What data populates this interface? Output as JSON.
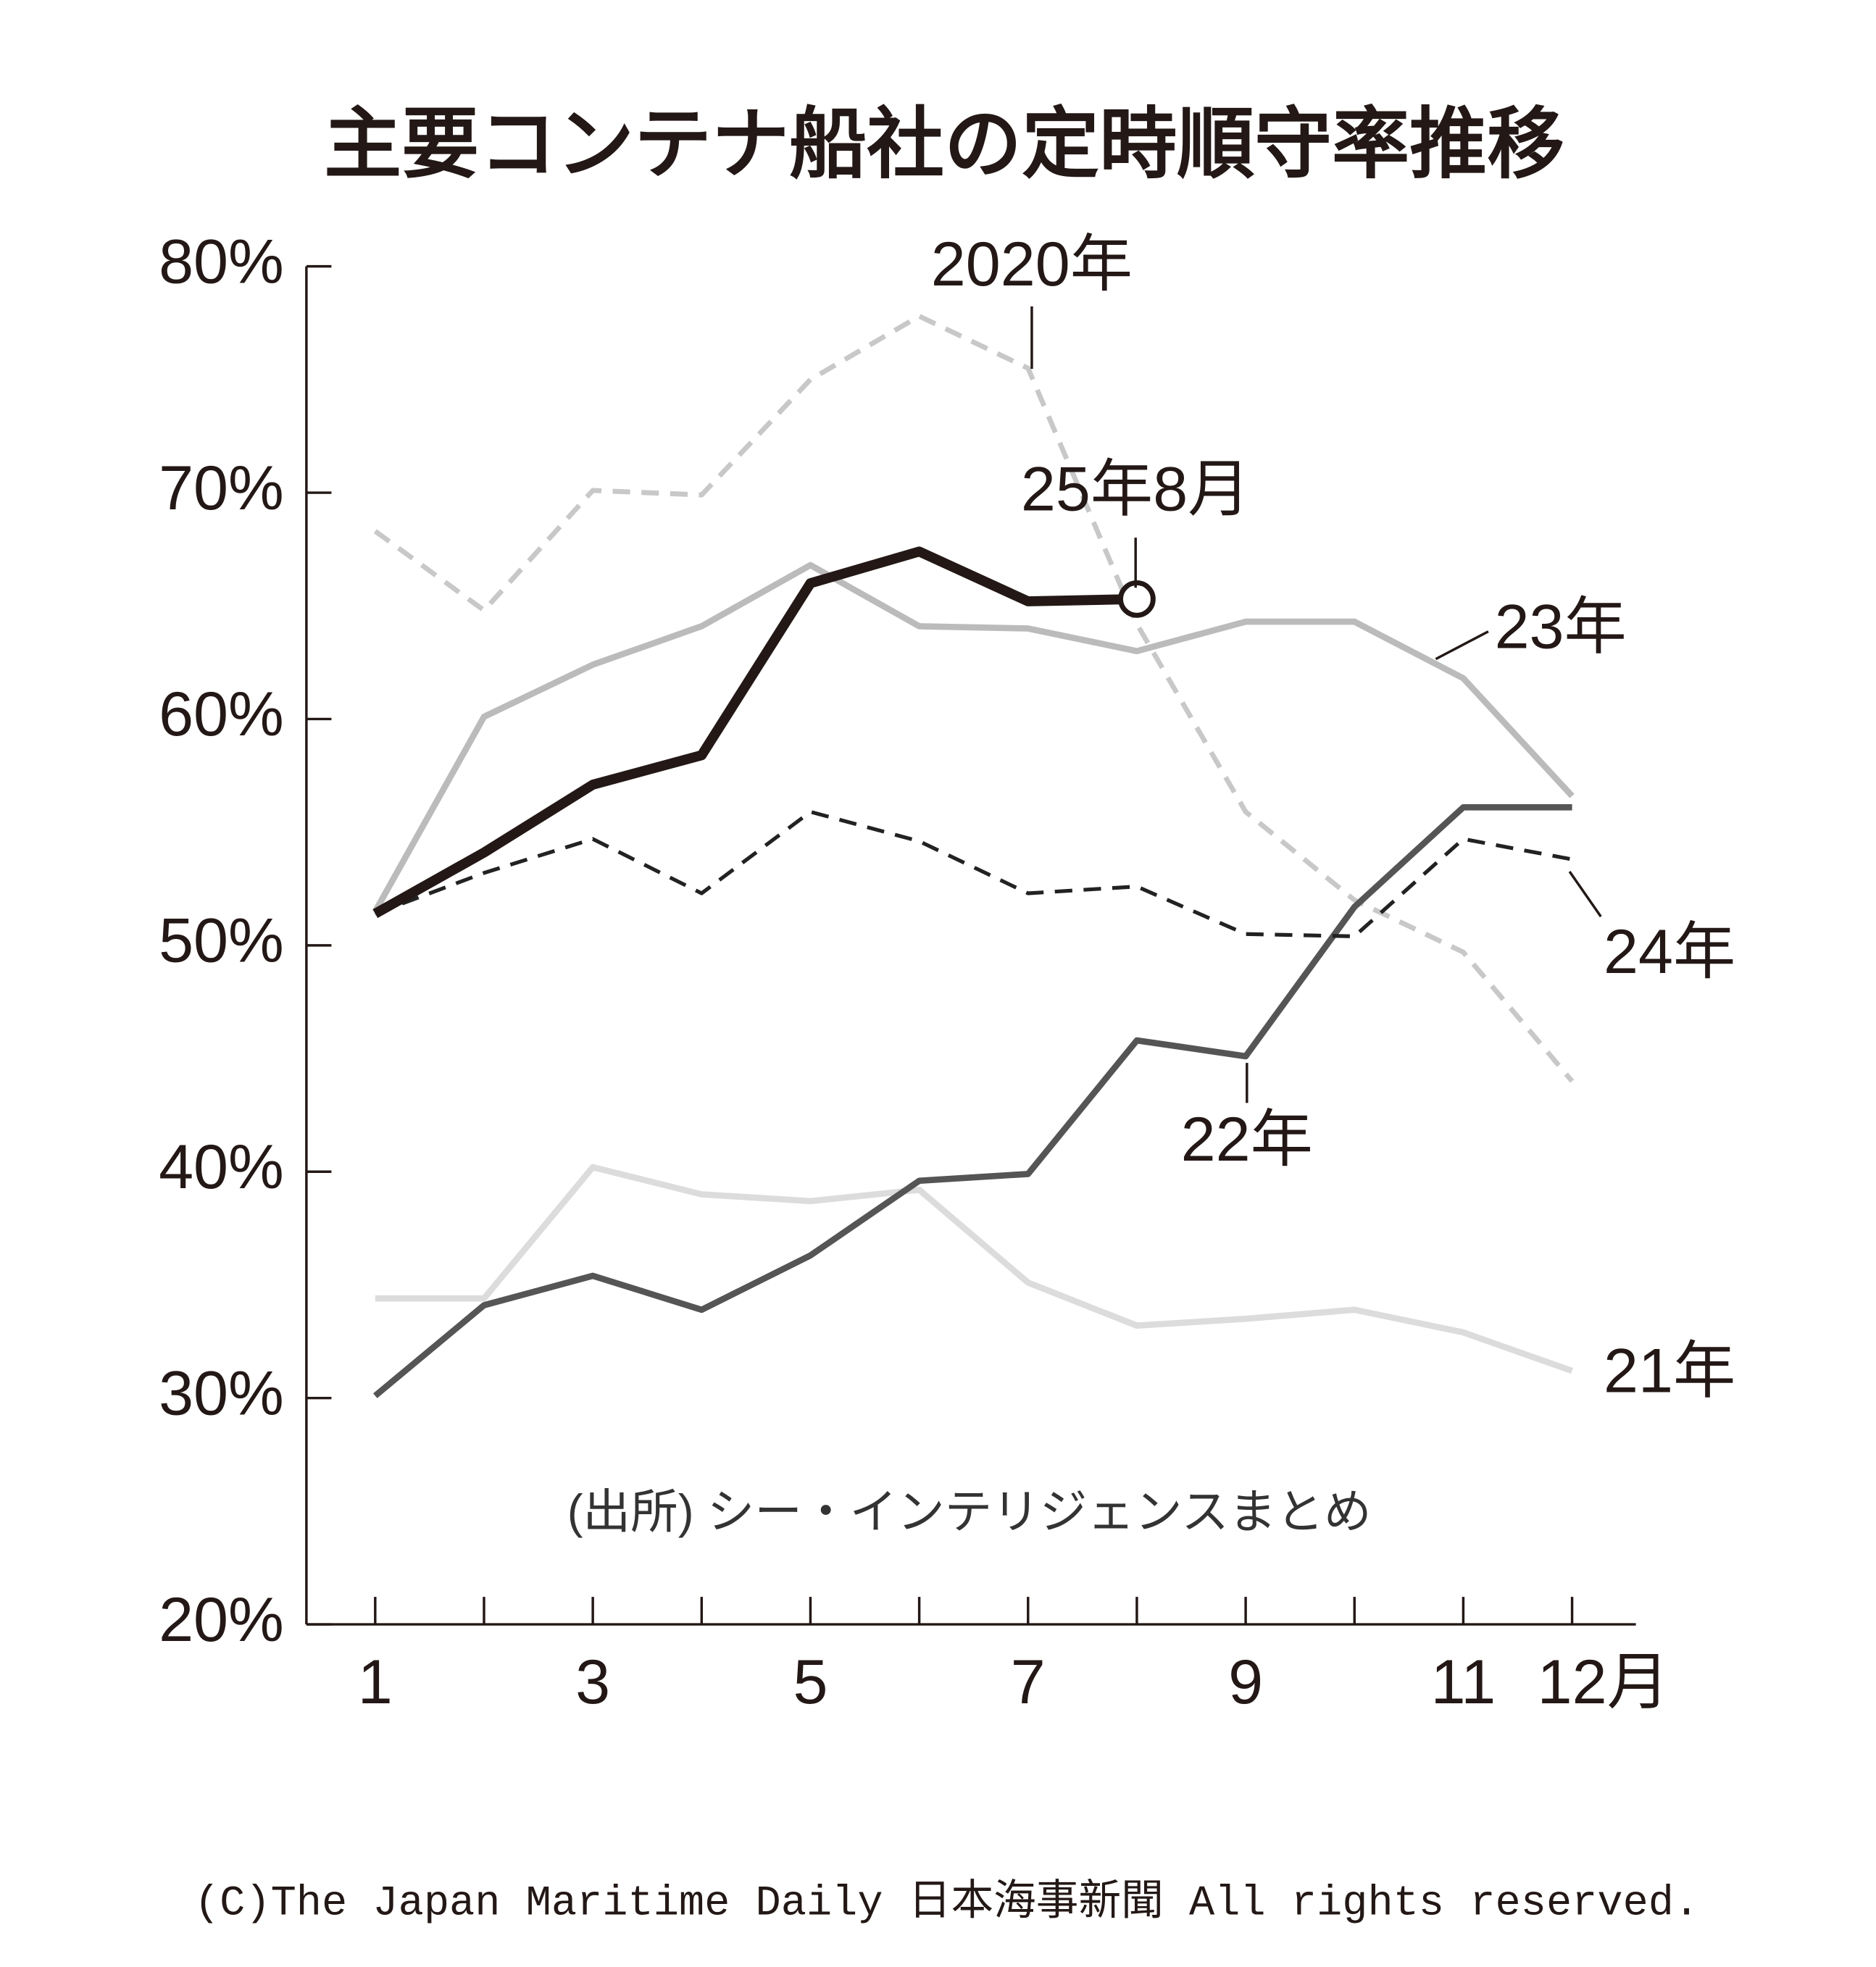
{
  "chart_data": {
    "type": "line",
    "title": "主要コンテナ船社の定時順守率推移",
    "note": "(出所) シー・インテリジェンスまとめ",
    "footer": "(C)The Japan Maritime Daily 日本海事新聞 All rights reserved.",
    "categories": [
      "1",
      null,
      "3",
      null,
      "5",
      null,
      "7",
      null,
      "9",
      null,
      "11",
      "12月"
    ],
    "ylim": [
      20,
      80
    ],
    "yticks": [
      {
        "value": 20,
        "label": "20%"
      },
      {
        "value": 30,
        "label": "30%"
      },
      {
        "value": 40,
        "label": "40%"
      },
      {
        "value": 50,
        "label": "50%"
      },
      {
        "value": 60,
        "label": "60%"
      },
      {
        "value": 70,
        "label": "70%"
      },
      {
        "value": 80,
        "label": "80%"
      }
    ],
    "series": [
      {
        "name": "2020年",
        "color": "#c8c8c8",
        "style": "dashed",
        "values": [
          68.3,
          64.8,
          70.1,
          69.9,
          75.0,
          77.8,
          75.5,
          64.2,
          55.9,
          52.0,
          49.7,
          44.0
        ]
      },
      {
        "name": "21年",
        "color": "#dcdcdc",
        "style": "solid",
        "values": [
          34.4,
          34.4,
          40.2,
          39.0,
          38.7,
          39.2,
          35.1,
          33.2,
          33.5,
          33.9,
          32.9,
          31.2
        ]
      },
      {
        "name": "22年",
        "color": "#555555",
        "style": "solid",
        "values": [
          30.1,
          34.1,
          35.4,
          33.9,
          36.3,
          39.6,
          39.9,
          45.8,
          45.1,
          51.7,
          56.1,
          56.1
        ]
      },
      {
        "name": "23年",
        "color": "#bbbbbb",
        "style": "solid",
        "values": [
          51.5,
          60.1,
          62.4,
          64.1,
          66.8,
          64.1,
          64.0,
          63.0,
          64.3,
          64.3,
          61.8,
          56.6
        ]
      },
      {
        "name": "24年",
        "color": "#222222",
        "style": "dashed",
        "values": [
          51.4,
          53.2,
          54.7,
          52.3,
          55.9,
          54.6,
          52.3,
          52.6,
          50.5,
          50.4,
          54.7,
          53.8
        ]
      },
      {
        "name": "25年8月",
        "color": "#231815",
        "style": "solid",
        "values": [
          51.4,
          54.1,
          57.1,
          58.4,
          66.0,
          67.4,
          65.2,
          65.3,
          null,
          null,
          null,
          null
        ]
      }
    ]
  }
}
